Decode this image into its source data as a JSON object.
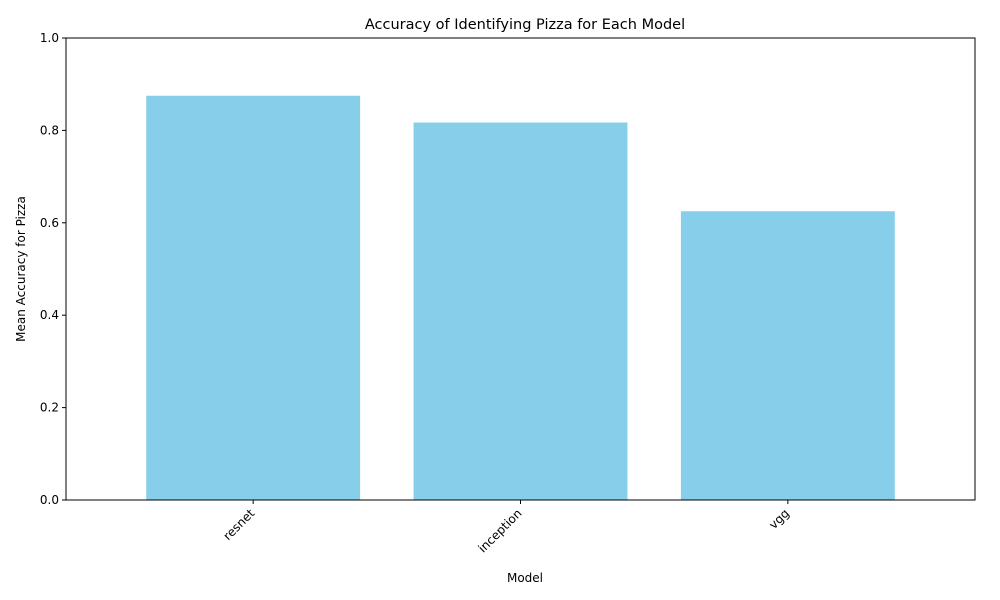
{
  "chart_data": {
    "type": "bar",
    "title": "Accuracy of Identifying Pizza for Each Model",
    "xlabel": "Model",
    "ylabel": "Mean Accuracy for Pizza",
    "categories": [
      "resnet",
      "inception",
      "vgg"
    ],
    "values": [
      0.875,
      0.817,
      0.625
    ],
    "ylim": [
      0,
      1.0
    ],
    "yticks": [
      "0.0",
      "0.2",
      "0.4",
      "0.6",
      "0.8",
      "1.0"
    ],
    "bar_color": "#87ceeb",
    "grid": false,
    "legend": "none"
  }
}
